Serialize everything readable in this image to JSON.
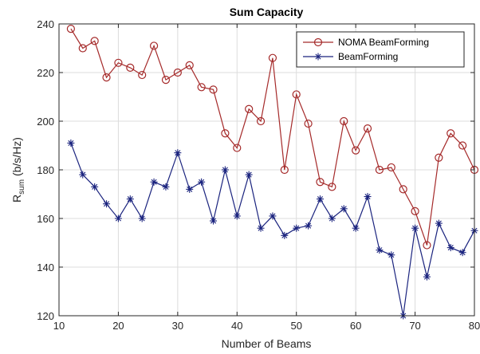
{
  "chart_data": {
    "type": "line",
    "title": "Sum Capacity",
    "xlabel": "Number of Beams",
    "ylabel_main": "R",
    "ylabel_sub": "sum",
    "ylabel_unit": " (b/s/Hz)",
    "xlim": [
      10,
      80
    ],
    "ylim": [
      120,
      240
    ],
    "xticks": [
      10,
      20,
      30,
      40,
      50,
      60,
      70,
      80
    ],
    "yticks": [
      120,
      140,
      160,
      180,
      200,
      220,
      240
    ],
    "grid": true,
    "legend_position": "top-right",
    "x": [
      12,
      14,
      16,
      18,
      20,
      22,
      24,
      26,
      28,
      30,
      32,
      34,
      36,
      38,
      40,
      42,
      44,
      46,
      48,
      50,
      52,
      54,
      56,
      58,
      60,
      62,
      64,
      66,
      68,
      70,
      72,
      74,
      76,
      78,
      80
    ],
    "series": [
      {
        "name": "NOMA BeamForming",
        "color": "#a52a2a",
        "marker": "circle",
        "values": [
          238,
          230,
          233,
          218,
          224,
          222,
          219,
          231,
          217,
          220,
          223,
          214,
          213,
          195,
          189,
          205,
          200,
          226,
          180,
          211,
          199,
          175,
          173,
          200,
          188,
          197,
          180,
          181,
          172,
          163,
          149,
          185,
          195,
          190,
          180
        ]
      },
      {
        "name": "BeamForming",
        "color": "#1a237e",
        "marker": "star",
        "values": [
          191,
          178,
          173,
          166,
          160,
          168,
          160,
          175,
          173,
          187,
          172,
          175,
          159,
          180,
          161,
          178,
          156,
          161,
          153,
          156,
          157,
          168,
          160,
          164,
          156,
          169,
          147,
          145,
          120,
          156,
          136,
          158,
          148,
          146,
          155
        ]
      }
    ]
  }
}
